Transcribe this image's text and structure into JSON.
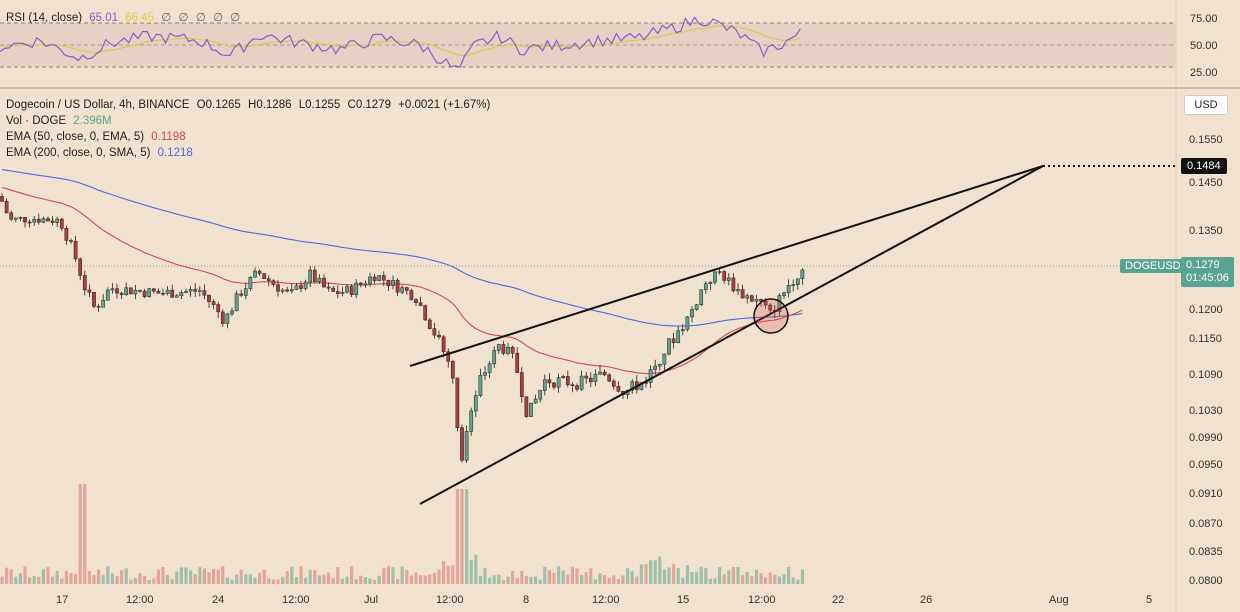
{
  "rsi": {
    "label": "RSI (14, close)",
    "value": "65.01",
    "ma_value": "66.45",
    "na_marks": [
      "∅",
      "∅",
      "∅",
      "∅",
      "∅"
    ],
    "ticks": [
      "75.00",
      "50.00",
      "25.00"
    ]
  },
  "legend": {
    "symbol": "Dogecoin / US Dollar, 4h, BINANCE",
    "o_label": "O",
    "o": "0.1265",
    "h_label": "H",
    "h": "0.1286",
    "l_label": "L",
    "l": "0.1255",
    "c_label": "C",
    "c": "0.1279",
    "change": "+0.0021 (+1.67%)",
    "vol_label": "Vol · DOGE",
    "vol_value": "2.396M",
    "ema50_label": "EMA (50, close, 0, EMA, 5)",
    "ema50_value": "0.1198",
    "ema200_label": "EMA (200, close, 0, SMA, 5)",
    "ema200_value": "0.1218"
  },
  "currency_button": "USD",
  "target_price": "0.1484",
  "symbol_tag": "DOGEUSD",
  "last_price": "0.1279",
  "countdown": "01:45:06",
  "colors": {
    "up": "#5aa592",
    "down": "#b23b3b",
    "ema50": "#d64a4a",
    "ema200": "#4a6ee0",
    "rsi": "#8a5ccc",
    "rsi_ma": "#e0c650",
    "price_tag": "#5aa592",
    "background": "#f1e2cf"
  },
  "chart_data": {
    "type": "candlestick",
    "y_ticks": [
      "0.1550",
      "0.1450",
      "0.1350",
      "0.1200",
      "0.1150",
      "0.1090",
      "0.1030",
      "0.0990",
      "0.0950",
      "0.0910",
      "0.0870",
      "0.0835",
      "0.0800"
    ],
    "x_ticks": [
      "17",
      "12:00",
      "24",
      "12:00",
      "Jul",
      "12:00",
      "8",
      "12:00",
      "15",
      "12:00",
      "22",
      "26",
      "Aug",
      "5"
    ],
    "ohlc_anchors": [
      {
        "x": "17",
        "price": 0.138
      },
      {
        "x": "12:00",
        "price": 0.1215
      },
      {
        "x": "24",
        "price": 0.1225
      },
      {
        "x": "12:00",
        "price": 0.124
      },
      {
        "x": "Jul",
        "price": 0.1225
      },
      {
        "x": "12:00",
        "price": 0.0955
      },
      {
        "x": "8",
        "price": 0.108
      },
      {
        "x": "12:00",
        "price": 0.109
      },
      {
        "x": "15",
        "price": 0.12
      },
      {
        "x": "12:00",
        "price": 0.119
      },
      {
        "x": "last",
        "price": 0.1279
      }
    ],
    "ema50_level": 0.1198,
    "ema200_level": 0.1218,
    "wedge_target": 0.1484,
    "rsi_levels": [
      75,
      50,
      25
    ]
  }
}
